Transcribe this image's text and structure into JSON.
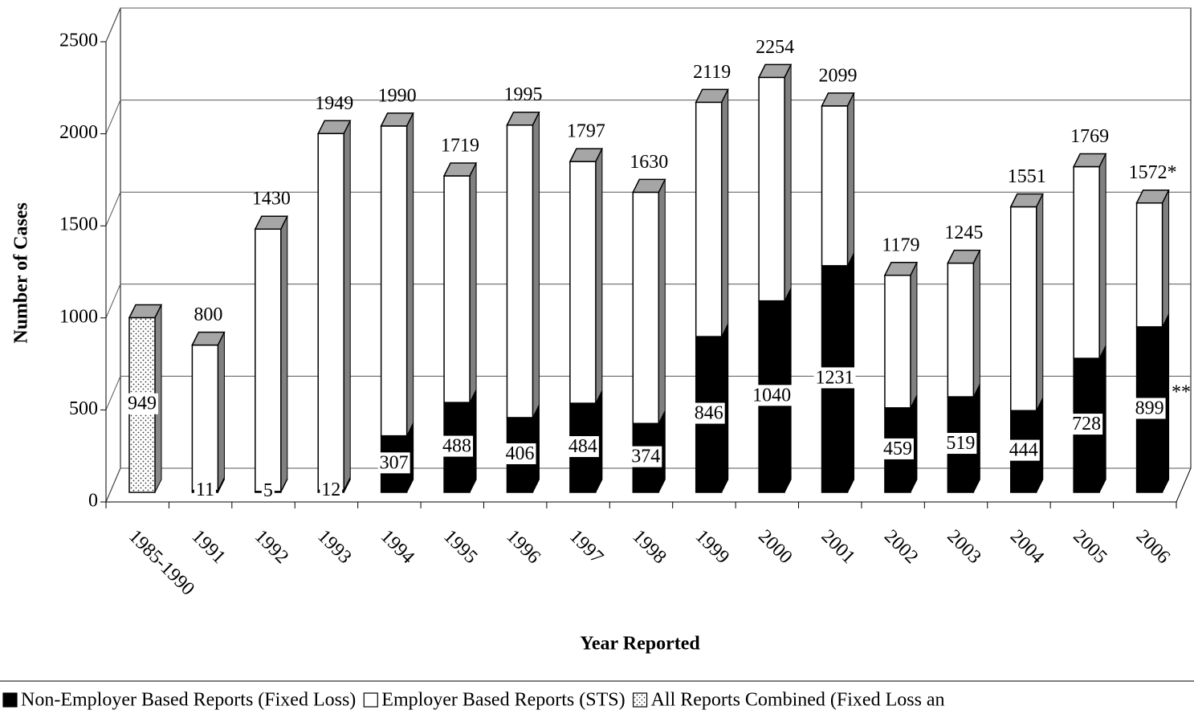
{
  "chart_data": {
    "type": "stacked-bar-3d",
    "y_label": "Number of Cases",
    "x_label": "Year Reported",
    "categories": [
      "1985-1990",
      "1991",
      "1992",
      "1993",
      "1994",
      "1995",
      "1996",
      "1997",
      "1998",
      "1999",
      "2000",
      "2001",
      "2002",
      "2003",
      "2004",
      "2005",
      "2006"
    ],
    "series": [
      {
        "name": "Non-Employer Based Reports (Fixed Loss)",
        "color": "#000000",
        "show_labels": true,
        "values": [
          null,
          11,
          5,
          12,
          307,
          488,
          406,
          484,
          374,
          846,
          1040,
          1231,
          459,
          519,
          444,
          728,
          899
        ]
      },
      {
        "name": "Employer Based Reports (STS)",
        "color": "#ffffff",
        "show_labels": false,
        "values": [
          null,
          789,
          1425,
          1937,
          1683,
          1231,
          1589,
          1313,
          1256,
          1273,
          1214,
          868,
          720,
          726,
          1107,
          1041,
          673
        ]
      },
      {
        "name": "All Reports Combined (Fixed Loss an",
        "color": "#ffffff",
        "pattern": "dots",
        "show_labels": true,
        "values": [
          949,
          null,
          null,
          null,
          null,
          null,
          null,
          null,
          null,
          null,
          null,
          null,
          null,
          null,
          null,
          null,
          null
        ]
      }
    ],
    "totals": {
      "values": [
        null,
        800,
        1430,
        1949,
        1990,
        1719,
        1995,
        1797,
        1630,
        2119,
        2254,
        2099,
        1179,
        1245,
        1551,
        1769,
        1572
      ],
      "value_labels": [
        null,
        "800",
        "1430",
        "1949",
        "1990",
        "1719",
        "1995",
        "1797",
        "1630",
        "2119",
        "2254",
        "2099",
        "1179",
        "1245",
        "1551",
        "1769",
        "1572*"
      ]
    },
    "annotations": [
      {
        "text": "**",
        "category": 16
      }
    ],
    "ylim": [
      0,
      2500
    ],
    "yticks": [
      0,
      500,
      1000,
      1500,
      2000,
      2500
    ],
    "grid": true
  }
}
